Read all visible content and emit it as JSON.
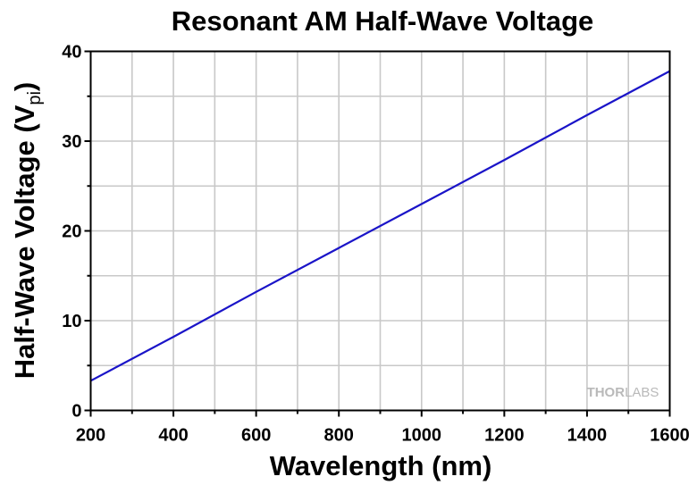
{
  "chart_data": {
    "type": "line",
    "title": "Resonant AM Half-Wave Voltage",
    "xlabel": "Wavelength (nm)",
    "ylabel_main": "Half-Wave Voltage (V",
    "ylabel_sub": "pi",
    "ylabel_close": ")",
    "xlim": [
      200,
      1600
    ],
    "ylim": [
      0,
      40
    ],
    "xticks": [
      200,
      400,
      600,
      800,
      1000,
      1200,
      1400,
      1600
    ],
    "yticks": [
      0,
      10,
      20,
      30,
      40
    ],
    "grid": true,
    "series": [
      {
        "color": "#1a14c8",
        "x": [
          200,
          400,
          600,
          800,
          1000,
          1200,
          1400,
          1600
        ],
        "y": [
          3.3,
          8.2,
          13.2,
          18.1,
          23.0,
          27.9,
          32.9,
          37.8
        ]
      }
    ]
  },
  "watermark": {
    "left": "THOR",
    "right": "LABS"
  }
}
